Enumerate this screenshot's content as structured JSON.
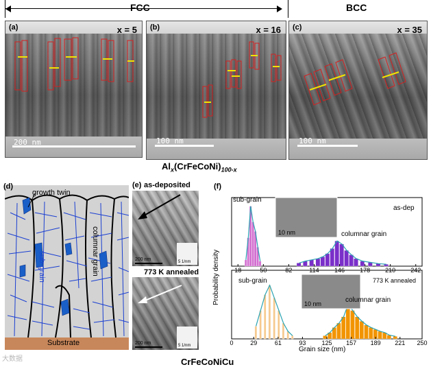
{
  "phases": {
    "fcc_label": "FCC",
    "bcc_label": "BCC"
  },
  "tem_panels": [
    {
      "letter": "(a)",
      "composition": "x = 5",
      "scale_label": "200 nm"
    },
    {
      "letter": "(b)",
      "composition": "x = 16",
      "scale_label": "100 nm"
    },
    {
      "letter": "(c)",
      "composition": "x = 35",
      "scale_label": "100 nm"
    }
  ],
  "alloy_formula": {
    "prefix": "Al",
    "sub1": "x",
    "middle": "(CrFeCoNi)",
    "sub2": "100-x"
  },
  "schematic": {
    "letter": "(d)",
    "growth_twin": "growth twin",
    "columnar_grain": "columnar grain",
    "sub_grain": "sub-grain",
    "substrate": "Substrate",
    "colors": {
      "boundary": "#1a3fd1",
      "twin": "#1a5fc8",
      "substrate": "#c8875a",
      "background": "#d3d3d3"
    }
  },
  "panel_e": {
    "letter": "(e)",
    "top_title": "as-deposited",
    "bottom_title": "773 K annealed",
    "top_scale": "200 nm",
    "bottom_scale": "200 nm",
    "top_diffraction": "5 1/nm",
    "bottom_diffraction": "5 1/nm"
  },
  "material_label": "CrFeCoNiCu",
  "watermark": "大数据",
  "chart_data": [
    {
      "type": "bar",
      "letter": "(f)",
      "condition": "as-dep",
      "ylabel": "Probability density",
      "xlim": [
        10,
        250
      ],
      "x_ticks": [
        18,
        50,
        82,
        114,
        146,
        178,
        210,
        242
      ],
      "inset_scale": "10 nm",
      "series": [
        {
          "name": "sub-grain",
          "color": "#d36fd0",
          "bins": [
            28,
            31,
            34,
            37,
            40,
            43,
            46
          ],
          "values": [
            0.1,
            0.45,
            0.95,
            0.7,
            0.55,
            0.3,
            0.08
          ]
        },
        {
          "name": "columnar grain",
          "color": "#7a2fc9",
          "bins": [
            95,
            103,
            111,
            119,
            125,
            131,
            137,
            143,
            149,
            155,
            161,
            167,
            175,
            185,
            195,
            205
          ],
          "values": [
            0.05,
            0.08,
            0.1,
            0.12,
            0.15,
            0.2,
            0.28,
            0.4,
            0.35,
            0.25,
            0.18,
            0.12,
            0.08,
            0.06,
            0.04,
            0.03
          ]
        }
      ],
      "fit_color": "#2aa3b3"
    },
    {
      "type": "bar",
      "condition": "773 K annealed",
      "xlabel": "Grain size (nm)",
      "xlim": [
        0,
        250
      ],
      "x_ticks": [
        29,
        61,
        93,
        125,
        157,
        189,
        221,
        250
      ],
      "x_ticks_extra": [
        0
      ],
      "inset_scale": "10 nm",
      "series": [
        {
          "name": "sub-grain",
          "color": "#f6c98e",
          "bins": [
            32,
            38,
            44,
            50,
            56,
            62,
            68,
            74,
            80
          ],
          "values": [
            0.2,
            0.45,
            0.7,
            0.85,
            0.65,
            0.45,
            0.25,
            0.12,
            0.05
          ]
        },
        {
          "name": "columnar grain",
          "color": "#f29400",
          "bins": [
            123,
            129,
            135,
            141,
            147,
            153,
            159,
            165,
            171,
            177,
            183,
            189,
            195,
            201,
            207,
            215
          ],
          "values": [
            0.05,
            0.1,
            0.18,
            0.25,
            0.35,
            0.55,
            0.45,
            0.35,
            0.28,
            0.22,
            0.18,
            0.15,
            0.12,
            0.1,
            0.06,
            0.04
          ]
        }
      ],
      "fit_color": "#2aa3b3"
    }
  ]
}
